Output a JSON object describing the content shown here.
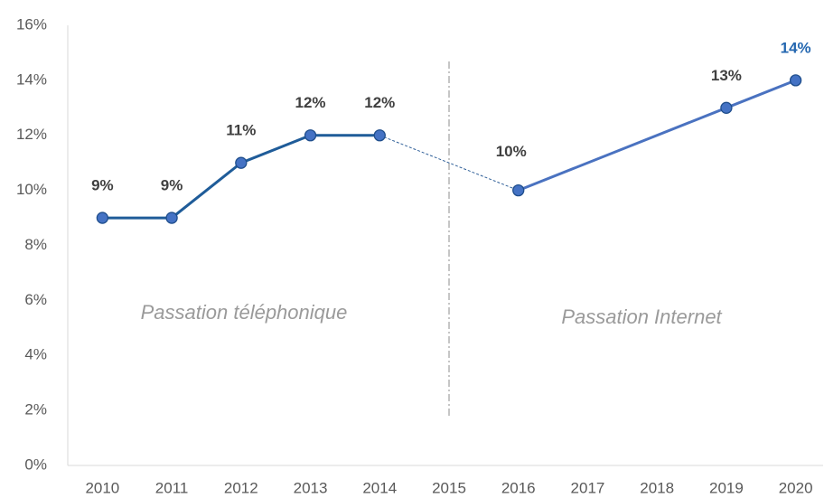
{
  "chart_data": {
    "type": "line",
    "annotations": [
      "Passation téléphonique",
      "Passation Internet"
    ],
    "xticks": [
      2010,
      2011,
      2012,
      2013,
      2014,
      2015,
      2016,
      2017,
      2018,
      2019,
      2020
    ],
    "xlim": [
      2009.5,
      2020.5
    ],
    "ylim": [
      0,
      16
    ],
    "yticks": [
      {
        "value": 0,
        "label": "0%"
      },
      {
        "value": 2,
        "label": "2%"
      },
      {
        "value": 4,
        "label": "4%"
      },
      {
        "value": 6,
        "label": "6%"
      },
      {
        "value": 8,
        "label": "8%"
      },
      {
        "value": 10,
        "label": "10%"
      },
      {
        "value": 12,
        "label": "12%"
      },
      {
        "value": 14,
        "label": "14%"
      },
      {
        "value": 16,
        "label": "16%"
      }
    ],
    "divider_x": 2015,
    "connector_color": "#2f5f98",
    "last_label_color": "#2467b0",
    "series": [
      {
        "color": "#1f5c99",
        "x": [
          2010,
          2011,
          2012,
          2013,
          2014
        ],
        "values": [
          9,
          9,
          11,
          12,
          12
        ],
        "value_labels": [
          "9%",
          "9%",
          "11%",
          "12%",
          "12%"
        ]
      },
      {
        "color": "#4a72c0",
        "x": [
          2016,
          2019,
          2020
        ],
        "values": [
          10,
          13,
          14
        ],
        "value_labels": [
          "10%",
          "13%",
          "14%"
        ]
      }
    ]
  }
}
